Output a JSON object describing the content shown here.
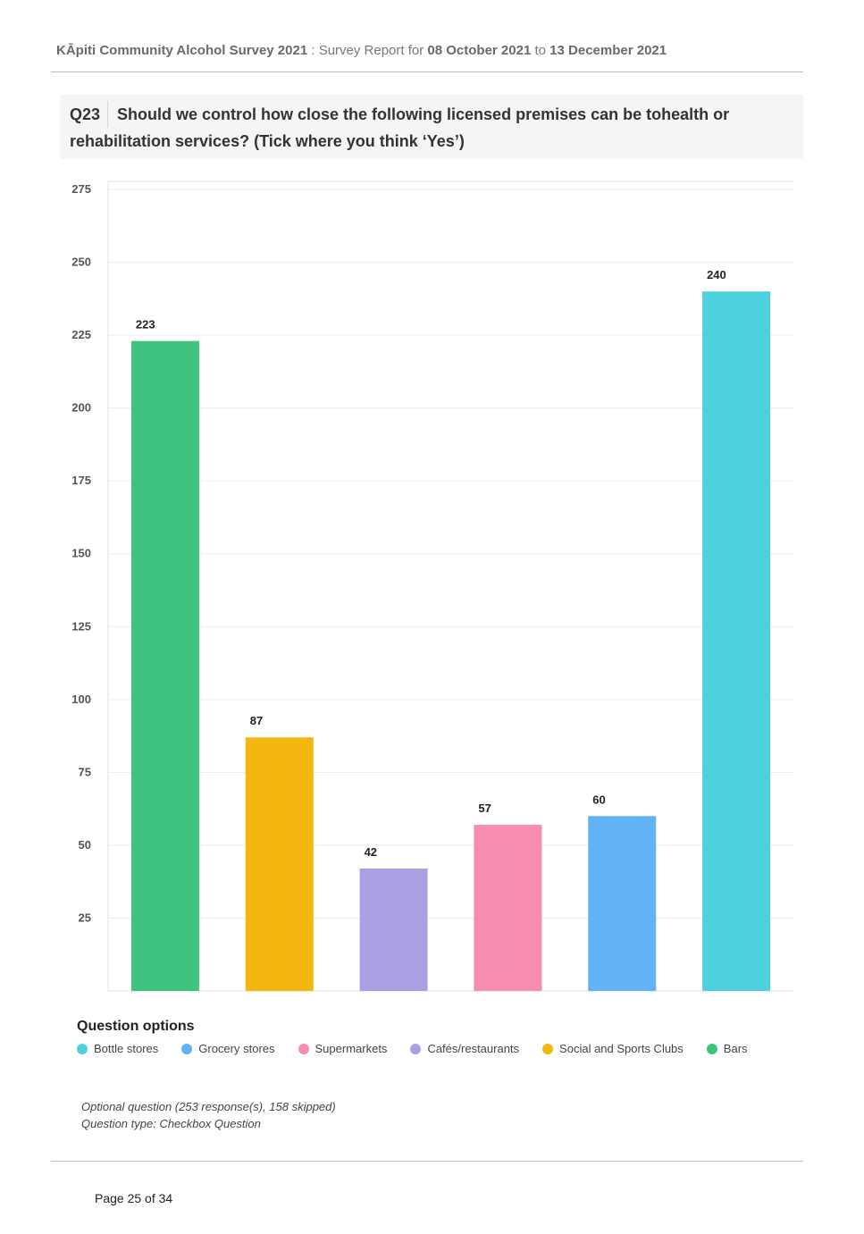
{
  "header": {
    "survey_name": "KĀpiti Community Alcohol Survey 2021",
    "sep": " : ",
    "report_label": "Survey Report for ",
    "date_from": "08 October 2021",
    "to_label": " to ",
    "date_to": "13 December 2021"
  },
  "question": {
    "number": "Q23",
    "text": "Should we control how close the following licensed premises can be tohealth or rehabilitation services?  (Tick where you think ‘Yes’)"
  },
  "chart_data": {
    "type": "bar",
    "categories": [
      "Bars",
      "Social and Sports Clubs",
      "Cafés/restaurants",
      "Supermarkets",
      "Grocery stores",
      "Bottle stores"
    ],
    "values": [
      223,
      87,
      42,
      57,
      60,
      240
    ],
    "colors": [
      "#3ec47f",
      "#f4b70f",
      "#aaa1e3",
      "#f58db0",
      "#62b3f5",
      "#4dd1df"
    ],
    "yticks": [
      25,
      50,
      75,
      100,
      125,
      150,
      175,
      200,
      225,
      250,
      275
    ],
    "ylim": [
      0,
      275
    ],
    "grid": true,
    "legend_position": "bottom"
  },
  "legend": {
    "title": "Question options",
    "items": [
      {
        "label": "Bottle stores",
        "color": "#4dd1df"
      },
      {
        "label": "Grocery stores",
        "color": "#62b3f5"
      },
      {
        "label": "Supermarkets",
        "color": "#f58db0"
      },
      {
        "label": "Cafés/restaurants",
        "color": "#aaa1e3"
      },
      {
        "label": "Social and Sports Clubs",
        "color": "#f4b70f"
      },
      {
        "label": "Bars",
        "color": "#3ec47f"
      }
    ]
  },
  "footer": {
    "note1": "Optional question (253 response(s), 158 skipped)",
    "note2": "Question type: Checkbox Question",
    "page": "Page 25 of 34"
  }
}
